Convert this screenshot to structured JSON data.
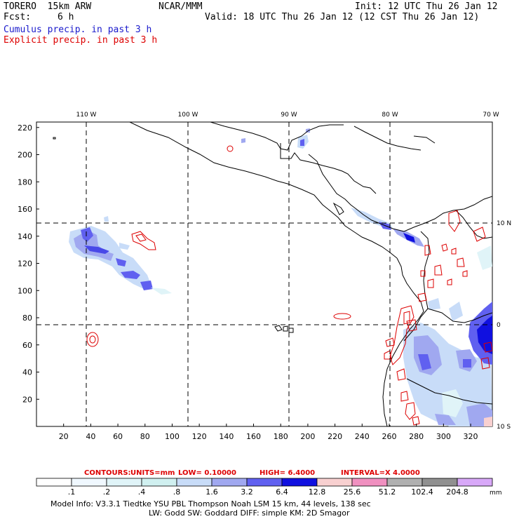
{
  "header": {
    "model": "TORERO  15km ARW",
    "org": "NCAR/MMM",
    "init": "Init: 12 UTC Thu 26 Jan 12",
    "fcst_label": "Fcst:",
    "fcst_value": "6 h",
    "valid": "Valid: 18 UTC Thu 26 Jan 12 (12 CST Thu 26 Jan 12)",
    "field_cumulus": "Cumulus precip. in past 3 h",
    "field_explicit": "Explicit precip. in past 3 h"
  },
  "colors": {
    "cumulus": "#1a1acc",
    "explicit": "#dd0000",
    "coast": "#000000"
  },
  "map": {
    "lon_labels": [
      "110 W",
      "100 W",
      "90 W",
      "80 W",
      "70 W"
    ],
    "lat_labels": [
      "10 N",
      "0",
      "10 S"
    ],
    "x_ticks": [
      "20",
      "40",
      "60",
      "80",
      "100",
      "120",
      "140",
      "160",
      "180",
      "200",
      "220",
      "240",
      "260",
      "280",
      "300",
      "320"
    ],
    "y_ticks": [
      "20",
      "40",
      "60",
      "80",
      "100",
      "120",
      "140",
      "160",
      "180",
      "200",
      "220"
    ]
  },
  "contour_info": {
    "label": "CONTOURS:",
    "units": "UNITS=mm",
    "low": "LOW= 0.10000",
    "high": "HIGH=  6.4000",
    "interval": "INTERVAL=X  4.0000"
  },
  "colorbar": {
    "levels": [
      ".1",
      ".2",
      ".4",
      ".8",
      "1.6",
      "3.2",
      "6.4",
      "12.8",
      "25.6",
      "51.2",
      "102.4",
      "204.8"
    ],
    "colors": [
      "#ffffff",
      "#f0f8ff",
      "#e0f4f8",
      "#d0f0f0",
      "#c8dcf8",
      "#a0a8f0",
      "#6060f0",
      "#1010e0",
      "#f8d0d0",
      "#f090c0",
      "#b0b0b0",
      "#909090",
      "#d8a8f8"
    ],
    "unit": "mm"
  },
  "footer": {
    "line1": "Model Info: V3.3.1   Tiedtke YSU PBL  Thompson    Noah LSM  15 km,   44 levels,  138 sec",
    "line2": "LW: Godd SW: Goddard DIFF: simple KM: 2D Smagor"
  }
}
